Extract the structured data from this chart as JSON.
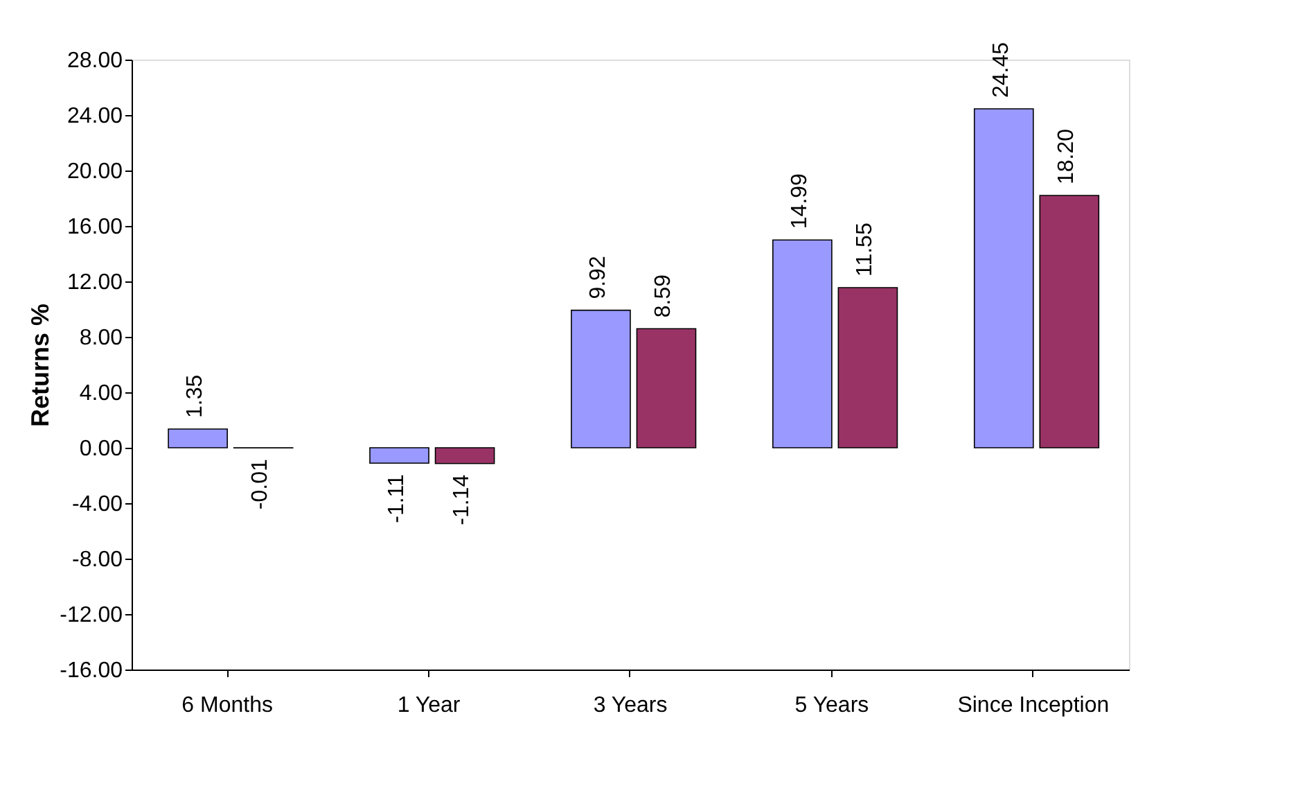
{
  "chart_data": {
    "type": "bar",
    "ylabel": "Returns %",
    "categories": [
      "6 Months",
      "1 Year",
      "3 Years",
      "5 Years",
      "Since Inception"
    ],
    "series": [
      {
        "color": "#9999ff",
        "values": [
          1.35,
          -1.11,
          9.92,
          14.99,
          24.45
        ],
        "value_labels": [
          "1.35",
          "-1.11",
          "9.92",
          "14.99",
          "24.45"
        ]
      },
      {
        "color": "#993366",
        "values": [
          -0.01,
          -1.14,
          8.59,
          11.55,
          18.2
        ],
        "value_labels": [
          "-0.01",
          "-1.14",
          "8.59",
          "11.55",
          "18.20"
        ]
      }
    ],
    "ylim": [
      -16,
      28
    ],
    "yticks": [
      {
        "value": -16,
        "label": "-16.00"
      },
      {
        "value": -12,
        "label": "-12.00"
      },
      {
        "value": -8,
        "label": "-8.00"
      },
      {
        "value": -4,
        "label": "-4.00"
      },
      {
        "value": 0,
        "label": "0.00"
      },
      {
        "value": 4,
        "label": "4.00"
      },
      {
        "value": 8,
        "label": "8.00"
      },
      {
        "value": 12,
        "label": "12.00"
      },
      {
        "value": 16,
        "label": "16.00"
      },
      {
        "value": 20,
        "label": "20.00"
      },
      {
        "value": 24,
        "label": "24.00"
      },
      {
        "value": 28,
        "label": "28.00"
      }
    ],
    "grid": false,
    "legend": false
  }
}
